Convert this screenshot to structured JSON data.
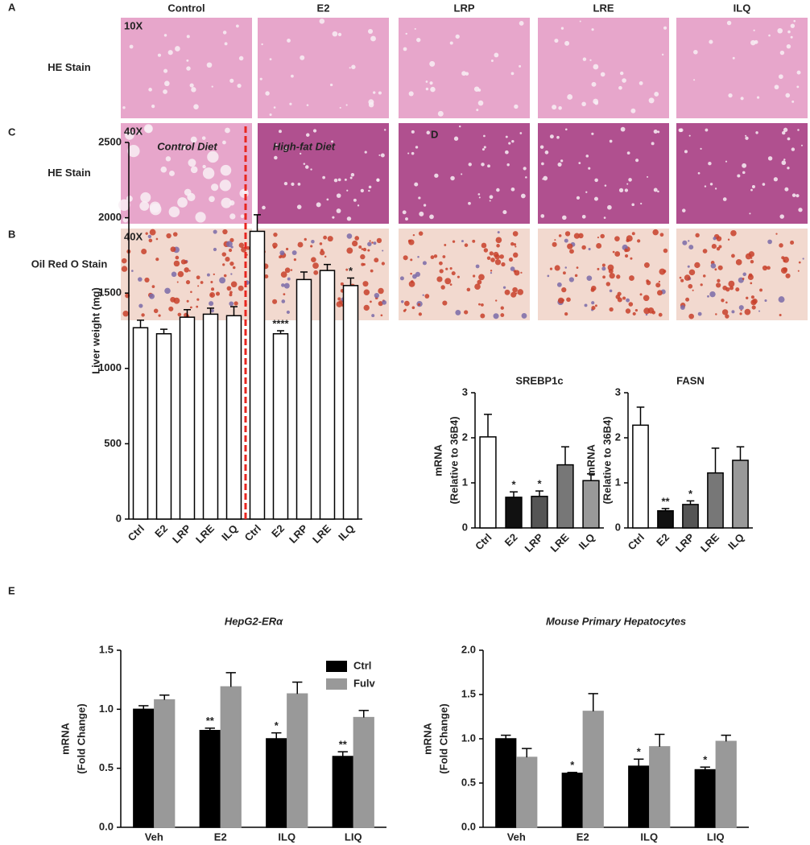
{
  "figure": {
    "panels": [
      "A",
      "B",
      "C",
      "D",
      "E"
    ],
    "columns": [
      "Control",
      "E2",
      "LRP",
      "LRE",
      "ILQ"
    ],
    "rows": [
      {
        "label": "HE Stain",
        "magnification": "10X"
      },
      {
        "label": "HE Stain",
        "magnification": "40X"
      },
      {
        "label": "Oil Red O Stain",
        "magnification": "40X"
      }
    ]
  },
  "chart_data": [
    {
      "type": "bar",
      "ylabel": [
        "Liver weight (mg)"
      ],
      "annotations": [
        "Control Diet",
        "High-fat Diet"
      ],
      "categories": [
        "Ctrl",
        "E2",
        "LRP",
        "LRE",
        "ILQ",
        "Ctrl",
        "E2",
        "LRP",
        "LRE",
        "ILQ"
      ],
      "values": [
        1270,
        1230,
        1340,
        1360,
        1350,
        1910,
        1230,
        1590,
        1650,
        1550
      ],
      "errors": [
        50,
        30,
        50,
        40,
        60,
        110,
        20,
        50,
        40,
        50
      ],
      "significance": [
        null,
        null,
        null,
        null,
        null,
        null,
        "****",
        null,
        null,
        "*"
      ],
      "color": "#ffffff",
      "edgecolor": "#000000",
      "ylim": [
        0,
        2500
      ],
      "yticks": [
        0,
        500,
        1000,
        1500,
        2000,
        2500
      ]
    },
    {
      "type": "bar",
      "title": "SREBP1c",
      "ylabel": [
        "mRNA",
        "(Relative to 36B4)"
      ],
      "categories": [
        "Ctrl",
        "E2",
        "LRP",
        "LRE",
        "ILQ"
      ],
      "values": [
        2.02,
        0.68,
        0.7,
        1.4,
        1.05
      ],
      "errors": [
        0.5,
        0.12,
        0.12,
        0.4,
        0.15
      ],
      "significance": [
        null,
        "*",
        "*",
        null,
        null
      ],
      "colors": [
        "#ffffff",
        "#111111",
        "#555555",
        "#777777",
        "#999999"
      ],
      "edgecolor": "#000000",
      "ylim": [
        0,
        3
      ],
      "yticks": [
        0,
        1,
        2,
        3
      ]
    },
    {
      "type": "bar",
      "title": "FASN",
      "ylabel": [
        "mRNA",
        "(Relative to 36B4)"
      ],
      "categories": [
        "Ctrl",
        "E2",
        "LRP",
        "LRE",
        "ILQ"
      ],
      "values": [
        2.28,
        0.38,
        0.52,
        1.22,
        1.5
      ],
      "errors": [
        0.4,
        0.05,
        0.08,
        0.55,
        0.3
      ],
      "significance": [
        null,
        "**",
        "*",
        null,
        null
      ],
      "colors": [
        "#ffffff",
        "#111111",
        "#555555",
        "#777777",
        "#999999"
      ],
      "edgecolor": "#000000",
      "ylim": [
        0,
        3
      ],
      "yticks": [
        0,
        1,
        2,
        3
      ]
    },
    {
      "type": "bar",
      "title": "HepG2-ERα",
      "ylabel": [
        "mRNA",
        "(Fold Change)"
      ],
      "categories": [
        "Veh",
        "E2",
        "ILQ",
        "LIQ"
      ],
      "series": [
        {
          "name": "Ctrl",
          "color": "#000000",
          "values": [
            1.0,
            0.82,
            0.75,
            0.6
          ],
          "errors": [
            0.03,
            0.02,
            0.05,
            0.04
          ],
          "significance": [
            null,
            "**",
            "*",
            "**"
          ]
        },
        {
          "name": "Fulv",
          "color": "#999999",
          "values": [
            1.08,
            1.19,
            1.13,
            0.93
          ],
          "errors": [
            0.04,
            0.12,
            0.1,
            0.06
          ]
        }
      ],
      "legend": "upper right",
      "ylim": [
        0,
        1.5
      ],
      "yticks": [
        {
          "value": 0,
          "label": "0.0"
        },
        0.5,
        {
          "value": 1,
          "label": "1.0"
        },
        1.5
      ]
    },
    {
      "type": "bar",
      "title": "Mouse Primary Hepatocytes",
      "ylabel": [
        "mRNA",
        "(Fold Change)"
      ],
      "categories": [
        "Veh",
        "E2",
        "ILQ",
        "LIQ"
      ],
      "series": [
        {
          "name": "Ctrl",
          "color": "#000000",
          "values": [
            1.0,
            0.61,
            0.69,
            0.65
          ],
          "errors": [
            0.04,
            0.01,
            0.08,
            0.03
          ],
          "significance": [
            null,
            "*",
            "*",
            "*"
          ]
        },
        {
          "name": "Fulv",
          "color": "#999999",
          "values": [
            0.79,
            1.31,
            0.91,
            0.97
          ],
          "errors": [
            0.1,
            0.2,
            0.14,
            0.07
          ]
        }
      ],
      "ylim": [
        0,
        2
      ],
      "yticks": [
        {
          "value": 0,
          "label": "0.0"
        },
        0.5,
        {
          "value": 1,
          "label": "1.0"
        },
        1.5,
        {
          "value": 2,
          "label": "2.0"
        }
      ]
    }
  ]
}
